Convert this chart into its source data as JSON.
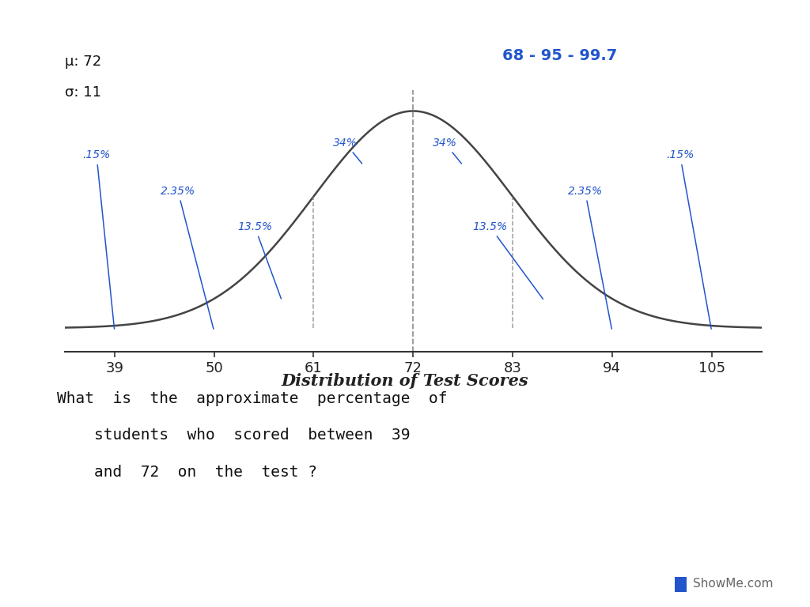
{
  "mu": 72,
  "sigma": 11,
  "x_ticks": [
    39,
    50,
    61,
    72,
    83,
    94,
    105
  ],
  "title": "Distribution of Test Scores",
  "rule_label": "68 - 95 - 99.7",
  "mu_label": "μ: 72",
  "sigma_label": "σ: 11",
  "background_color": "#ffffff",
  "curve_color": "#444444",
  "text_color_blue": "#2255cc",
  "text_color_black": "#111111",
  "dashed_color": "#888888",
  "annot_data": [
    [
      ".15%",
      39,
      0.6,
      "left",
      -1.0
    ],
    [
      "2.35%",
      50,
      0.55,
      "left",
      -0.5
    ],
    [
      "13.5%",
      56,
      0.42,
      "left",
      0.0
    ],
    [
      "34%",
      66,
      0.68,
      "left",
      1.0
    ],
    [
      "34%",
      78,
      0.68,
      "right",
      1.0
    ],
    [
      "13.5%",
      88,
      0.42,
      "right",
      0.0
    ],
    [
      "2.35%",
      94,
      0.55,
      "right",
      -0.5
    ],
    [
      ".15%",
      105,
      0.6,
      "right",
      -1.0
    ]
  ],
  "question_line1": "What  is  the  approximate  percentage  of",
  "question_line2": "    students  who  scored  between  39",
  "question_line3": "    and  72  on  the  test ?",
  "showme": "ShowMe.com"
}
